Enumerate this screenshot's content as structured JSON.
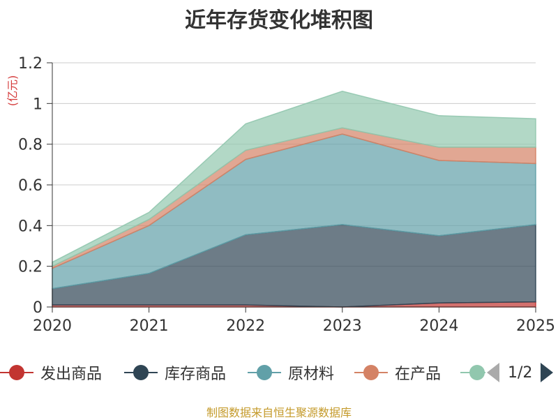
{
  "title": "近年存货变化堆积图",
  "unit": "(亿元)",
  "source": "制图数据来自恒生聚源数据库",
  "pager": {
    "text": "1/2"
  },
  "chart_data": {
    "type": "area",
    "stacked": true,
    "x": [
      "2020",
      "2021",
      "2022",
      "2023",
      "2024",
      "2025"
    ],
    "ylim": [
      0,
      1.2
    ],
    "yticks": [
      "0",
      "0.2",
      "0.4",
      "0.6",
      "0.8",
      "1",
      "1.2"
    ],
    "grid": true,
    "legend_position": "bottom",
    "series": [
      {
        "name": "发出商品",
        "color": "#c23531",
        "values": [
          0.01,
          0.01,
          0.01,
          0.0,
          0.02,
          0.025
        ]
      },
      {
        "name": "库存商品",
        "color": "#2f4554",
        "values": [
          0.08,
          0.155,
          0.345,
          0.405,
          0.33,
          0.38
        ]
      },
      {
        "name": "原材料",
        "color": "#61a0a8",
        "values": [
          0.1,
          0.235,
          0.37,
          0.445,
          0.37,
          0.3
        ]
      },
      {
        "name": "在产品",
        "color": "#d48265",
        "values": [
          0.01,
          0.03,
          0.045,
          0.03,
          0.065,
          0.08
        ]
      },
      {
        "name": "",
        "color": "#91c7ae",
        "values": [
          0.02,
          0.035,
          0.13,
          0.18,
          0.155,
          0.14
        ]
      }
    ]
  }
}
